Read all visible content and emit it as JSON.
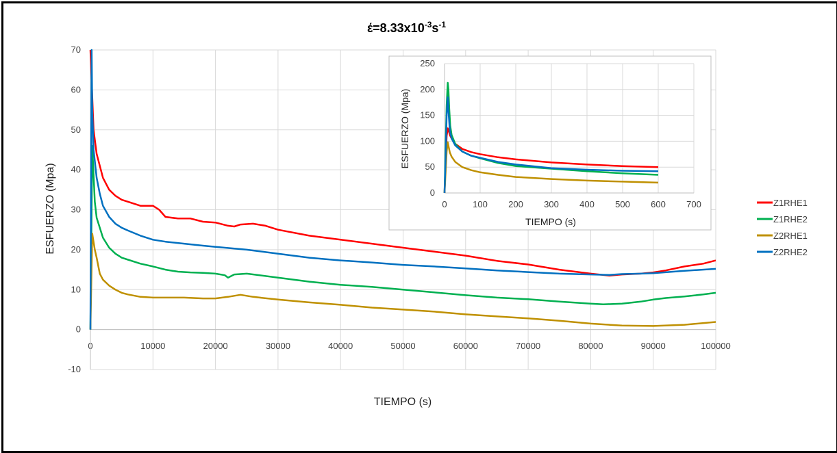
{
  "chart_data": [
    {
      "type": "line",
      "title": "έ=8.33x10",
      "title_sup1": "-3",
      "title_mid": "s",
      "title_sup2": "-1",
      "xlabel": "TIEMPO (s)",
      "ylabel": "ESFUERZO (Mpa)",
      "xlim": [
        0,
        100000
      ],
      "ylim": [
        -10,
        70
      ],
      "x_ticks": [
        "0",
        "10000",
        "20000",
        "30000",
        "40000",
        "50000",
        "60000",
        "70000",
        "80000",
        "90000",
        "100000"
      ],
      "y_ticks": [
        "-10",
        "0",
        "10",
        "20",
        "30",
        "40",
        "50",
        "60",
        "70"
      ],
      "grid": true,
      "legend_position": "right",
      "series": [
        {
          "name": "Z1RHE1",
          "color": "#ff0000",
          "x": [
            0,
            500,
            1000,
            2000,
            3000,
            4000,
            5000,
            6000,
            8000,
            10000,
            11000,
            12000,
            14000,
            16000,
            18000,
            20000,
            22000,
            23000,
            24000,
            26000,
            28000,
            30000,
            35000,
            40000,
            45000,
            50000,
            55000,
            60000,
            65000,
            70000,
            75000,
            80000,
            83000,
            85000,
            88000,
            90000,
            92000,
            95000,
            98000,
            100000
          ],
          "y": [
            70,
            50,
            44,
            38,
            35,
            33.5,
            32.5,
            32,
            31,
            31,
            30,
            28.2,
            27.8,
            27.8,
            27,
            26.8,
            26,
            25.8,
            26.3,
            26.5,
            26,
            25,
            23.5,
            22.5,
            21.5,
            20.5,
            19.5,
            18.5,
            17.2,
            16.3,
            15,
            14,
            13.5,
            13.8,
            14,
            14.3,
            14.8,
            15.8,
            16.5,
            17.3
          ]
        },
        {
          "name": "Z1RHE2",
          "color": "#00b050",
          "x": [
            0,
            300,
            700,
            1000,
            2000,
            3000,
            4000,
            5000,
            6000,
            8000,
            10000,
            12000,
            14000,
            16000,
            18000,
            20000,
            21500,
            22000,
            23000,
            25000,
            30000,
            35000,
            40000,
            45000,
            50000,
            55000,
            60000,
            65000,
            70000,
            75000,
            80000,
            82000,
            85000,
            88000,
            90000,
            92000,
            95000,
            98000,
            100000
          ],
          "y": [
            0,
            46,
            32,
            28,
            23,
            20.5,
            19,
            18,
            17.5,
            16.5,
            15.8,
            15,
            14.5,
            14.3,
            14.2,
            14,
            13.6,
            13,
            13.8,
            14,
            13,
            12,
            11.2,
            10.7,
            10,
            9.3,
            8.6,
            8,
            7.6,
            7,
            6.5,
            6.3,
            6.5,
            7,
            7.5,
            7.9,
            8.3,
            8.8,
            9.2
          ]
        },
        {
          "name": "Z2RHE1",
          "color": "#bf9000",
          "x": [
            0,
            300,
            700,
            1000,
            1500,
            2000,
            3000,
            4000,
            5000,
            6000,
            8000,
            10000,
            12000,
            15000,
            18000,
            20000,
            22000,
            24000,
            26000,
            30000,
            35000,
            40000,
            45000,
            50000,
            55000,
            60000,
            65000,
            70000,
            75000,
            80000,
            85000,
            90000,
            95000,
            100000
          ],
          "y": [
            0,
            24,
            20,
            18,
            14,
            12.5,
            11,
            10,
            9.2,
            8.8,
            8.2,
            8,
            8,
            8,
            7.8,
            7.8,
            8.2,
            8.7,
            8.2,
            7.5,
            6.8,
            6.2,
            5.5,
            5,
            4.5,
            3.8,
            3.3,
            2.8,
            2.2,
            1.5,
            1,
            0.9,
            1.2,
            1.9
          ]
        },
        {
          "name": "Z2RHE2",
          "color": "#0070c0",
          "x": [
            0,
            200,
            300,
            500,
            1000,
            1500,
            2000,
            3000,
            4000,
            5000,
            6000,
            8000,
            10000,
            12000,
            15000,
            18000,
            20000,
            25000,
            30000,
            35000,
            40000,
            45000,
            50000,
            55000,
            60000,
            65000,
            70000,
            75000,
            80000,
            83000,
            85000,
            88000,
            90000,
            95000,
            100000
          ],
          "y": [
            0,
            70,
            55,
            45,
            38,
            34,
            31,
            28.2,
            26.5,
            25.5,
            24.8,
            23.5,
            22.5,
            22,
            21.5,
            21,
            20.7,
            20,
            19,
            18,
            17.3,
            16.8,
            16.2,
            15.8,
            15.3,
            14.8,
            14.4,
            14,
            13.8,
            13.7,
            13.9,
            14,
            14.1,
            14.7,
            15.2
          ]
        }
      ]
    },
    {
      "type": "line",
      "title": "",
      "xlabel": "TIEMPO (s)",
      "ylabel": "ESFUERZO (Mpa)",
      "xlim": [
        0,
        700
      ],
      "ylim": [
        0,
        250
      ],
      "x_ticks": [
        "0",
        "100",
        "200",
        "300",
        "400",
        "500",
        "600",
        "700"
      ],
      "y_ticks": [
        "0",
        "50",
        "100",
        "150",
        "200",
        "250"
      ],
      "grid": true,
      "series": [
        {
          "name": "Z1RHE1",
          "color": "#ff0000",
          "x": [
            0,
            3,
            6,
            9,
            12,
            15,
            20,
            30,
            50,
            75,
            100,
            150,
            200,
            300,
            400,
            500,
            600
          ],
          "y": [
            0,
            60,
            110,
            125,
            120,
            112,
            105,
            95,
            85,
            79,
            75,
            69,
            65,
            59,
            55,
            52,
            50
          ]
        },
        {
          "name": "Z1RHE2",
          "color": "#00b050",
          "x": [
            0,
            3,
            6,
            9,
            11,
            13,
            16,
            20,
            30,
            50,
            75,
            100,
            150,
            200,
            300,
            400,
            500,
            600
          ],
          "y": [
            0,
            90,
            170,
            213,
            200,
            165,
            130,
            112,
            95,
            80,
            72,
            67,
            58,
            52,
            47,
            42,
            38,
            35
          ]
        },
        {
          "name": "Z2RHE1",
          "color": "#bf9000",
          "x": [
            0,
            3,
            6,
            9,
            12,
            15,
            20,
            30,
            50,
            75,
            100,
            150,
            200,
            300,
            400,
            500,
            600
          ],
          "y": [
            0,
            40,
            80,
            98,
            88,
            78,
            70,
            60,
            50,
            44,
            40,
            35,
            31,
            27,
            24,
            22,
            20
          ]
        },
        {
          "name": "Z2RHE2",
          "color": "#0070c0",
          "x": [
            0,
            3,
            6,
            9,
            12,
            15,
            20,
            30,
            50,
            75,
            100,
            150,
            200,
            300,
            400,
            500,
            600
          ],
          "y": [
            0,
            70,
            150,
            185,
            150,
            120,
            105,
            92,
            80,
            72,
            68,
            60,
            55,
            48,
            45,
            43,
            42
          ]
        }
      ]
    }
  ]
}
